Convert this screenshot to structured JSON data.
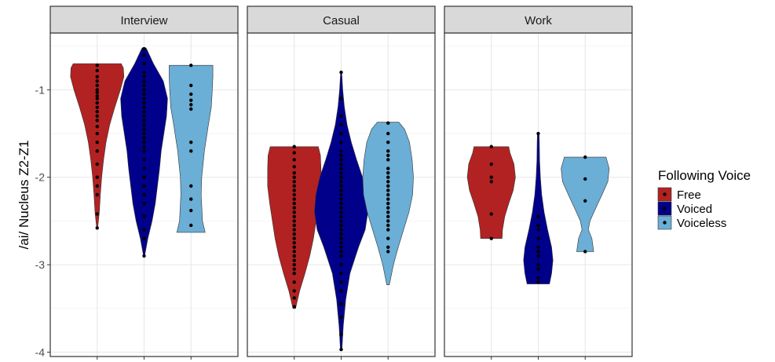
{
  "chart_data": {
    "type": "violin",
    "ylabel": "/ai/ Nucleus Z2-Z1",
    "ylim": [
      -4.05,
      -0.35
    ],
    "yticks": [
      -4,
      -3,
      -2,
      -1
    ],
    "ytick_labels": [
      "-4",
      "-3",
      "-2",
      "-1"
    ],
    "categories": [
      "Free",
      "Voiced",
      "Voiceless"
    ],
    "grid": true,
    "legend": {
      "title": "Following Voice",
      "position": "right",
      "entries": [
        {
          "label": "Free",
          "color": "#b22222"
        },
        {
          "label": "Voiced",
          "color": "#00008b"
        },
        {
          "label": "Voiceless",
          "color": "#6baed6"
        }
      ]
    },
    "facets": [
      {
        "title": "Interview",
        "violins": [
          {
            "group": "Free",
            "min": -2.58,
            "max": -0.7,
            "density": [
              [
                -2.58,
                0.02
              ],
              [
                -2.4,
                0.08
              ],
              [
                -2.2,
                0.12
              ],
              [
                -2.0,
                0.17
              ],
              [
                -1.8,
                0.24
              ],
              [
                -1.6,
                0.33
              ],
              [
                -1.4,
                0.47
              ],
              [
                -1.2,
                0.66
              ],
              [
                -1.0,
                0.87
              ],
              [
                -0.85,
                1.0
              ],
              [
                -0.75,
                0.98
              ],
              [
                -0.7,
                0.9
              ]
            ],
            "points": [
              -0.72,
              -0.78,
              -0.85,
              -0.9,
              -0.95,
              -1.0,
              -1.03,
              -1.07,
              -1.1,
              -1.15,
              -1.2,
              -1.25,
              -1.3,
              -1.35,
              -1.42,
              -1.5,
              -1.6,
              -1.7,
              -1.85,
              -2.0,
              -2.1,
              -2.2,
              -2.42,
              -2.58
            ]
          },
          {
            "group": "Voiced",
            "min": -2.9,
            "max": -0.52,
            "density": [
              [
                -2.9,
                0.02
              ],
              [
                -2.7,
                0.14
              ],
              [
                -2.5,
                0.3
              ],
              [
                -2.3,
                0.42
              ],
              [
                -2.1,
                0.5
              ],
              [
                -1.9,
                0.58
              ],
              [
                -1.7,
                0.64
              ],
              [
                -1.5,
                0.74
              ],
              [
                -1.3,
                0.84
              ],
              [
                -1.1,
                0.88
              ],
              [
                -0.9,
                0.72
              ],
              [
                -0.7,
                0.35
              ],
              [
                -0.55,
                0.12
              ],
              [
                -0.52,
                0.07
              ]
            ],
            "points": [
              -0.53,
              -0.6,
              -0.7,
              -0.8,
              -0.85,
              -0.9,
              -0.95,
              -1.0,
              -1.05,
              -1.1,
              -1.15,
              -1.2,
              -1.25,
              -1.3,
              -1.35,
              -1.4,
              -1.45,
              -1.5,
              -1.55,
              -1.6,
              -1.65,
              -1.7,
              -1.8,
              -1.9,
              -2.0,
              -2.1,
              -2.2,
              -2.3,
              -2.45,
              -2.6,
              -2.7,
              -2.9
            ]
          },
          {
            "group": "Voiceless",
            "min": -2.63,
            "max": -0.72,
            "density": [
              [
                -2.63,
                0.53
              ],
              [
                -2.5,
                0.43
              ],
              [
                -2.2,
                0.38
              ],
              [
                -2.0,
                0.4
              ],
              [
                -1.7,
                0.5
              ],
              [
                -1.4,
                0.65
              ],
              [
                -1.2,
                0.76
              ],
              [
                -1.0,
                0.8
              ],
              [
                -0.85,
                0.82
              ],
              [
                -0.72,
                0.82
              ]
            ],
            "points": [
              -0.72,
              -0.95,
              -1.05,
              -1.12,
              -1.17,
              -1.22,
              -1.6,
              -1.7,
              -2.1,
              -2.25,
              -2.38,
              -2.55
            ]
          }
        ]
      },
      {
        "title": "Casual",
        "violins": [
          {
            "group": "Free",
            "min": -3.5,
            "max": -1.65,
            "density": [
              [
                -3.5,
                0.05
              ],
              [
                -3.3,
                0.2
              ],
              [
                -3.1,
                0.4
              ],
              [
                -2.9,
                0.58
              ],
              [
                -2.7,
                0.72
              ],
              [
                -2.5,
                0.82
              ],
              [
                -2.3,
                0.92
              ],
              [
                -2.1,
                1.0
              ],
              [
                -1.9,
                1.0
              ],
              [
                -1.75,
                0.98
              ],
              [
                -1.65,
                0.9
              ]
            ],
            "points": [
              -1.65,
              -1.72,
              -1.8,
              -1.88,
              -1.95,
              -2.0,
              -2.05,
              -2.1,
              -2.15,
              -2.2,
              -2.25,
              -2.3,
              -2.35,
              -2.4,
              -2.45,
              -2.5,
              -2.55,
              -2.6,
              -2.65,
              -2.7,
              -2.75,
              -2.8,
              -2.85,
              -2.9,
              -2.95,
              -3.0,
              -3.05,
              -3.1,
              -3.2,
              -3.3,
              -3.38,
              -3.48
            ]
          },
          {
            "group": "Voiced",
            "min": -3.97,
            "max": -0.8,
            "density": [
              [
                -3.97,
                0.03
              ],
              [
                -3.7,
                0.08
              ],
              [
                -3.4,
                0.17
              ],
              [
                -3.1,
                0.33
              ],
              [
                -2.8,
                0.65
              ],
              [
                -2.6,
                0.9
              ],
              [
                -2.4,
                1.0
              ],
              [
                -2.2,
                0.95
              ],
              [
                -2.0,
                0.8
              ],
              [
                -1.8,
                0.58
              ],
              [
                -1.6,
                0.38
              ],
              [
                -1.4,
                0.22
              ],
              [
                -1.2,
                0.12
              ],
              [
                -1.0,
                0.06
              ],
              [
                -0.8,
                0.02
              ]
            ],
            "points": [
              -0.8,
              -1.1,
              -1.3,
              -1.4,
              -1.5,
              -1.6,
              -1.7,
              -1.75,
              -1.8,
              -1.85,
              -1.9,
              -1.95,
              -2.0,
              -2.05,
              -2.1,
              -2.15,
              -2.2,
              -2.25,
              -2.3,
              -2.35,
              -2.4,
              -2.45,
              -2.5,
              -2.55,
              -2.6,
              -2.65,
              -2.7,
              -2.75,
              -2.8,
              -2.85,
              -2.9,
              -3.0,
              -3.1,
              -3.2,
              -3.3,
              -3.45,
              -3.6,
              -3.8,
              -3.97
            ]
          },
          {
            "group": "Voiceless",
            "min": -3.23,
            "max": -1.37,
            "density": [
              [
                -3.23,
                0.05
              ],
              [
                -3.0,
                0.2
              ],
              [
                -2.8,
                0.38
              ],
              [
                -2.6,
                0.58
              ],
              [
                -2.4,
                0.78
              ],
              [
                -2.2,
                0.92
              ],
              [
                -2.0,
                0.95
              ],
              [
                -1.8,
                0.9
              ],
              [
                -1.6,
                0.8
              ],
              [
                -1.45,
                0.62
              ],
              [
                -1.37,
                0.4
              ]
            ],
            "points": [
              -1.38,
              -1.5,
              -1.6,
              -1.7,
              -1.75,
              -1.8,
              -1.9,
              -1.95,
              -2.0,
              -2.05,
              -2.1,
              -2.15,
              -2.2,
              -2.25,
              -2.3,
              -2.35,
              -2.4,
              -2.45,
              -2.5,
              -2.55,
              -2.6,
              -2.7,
              -2.8,
              -2.85
            ]
          }
        ]
      },
      {
        "title": "Work",
        "violins": [
          {
            "group": "Free",
            "min": -2.7,
            "max": -1.65,
            "density": [
              [
                -2.7,
                0.4
              ],
              [
                -2.6,
                0.42
              ],
              [
                -2.45,
                0.5
              ],
              [
                -2.3,
                0.65
              ],
              [
                -2.15,
                0.82
              ],
              [
                -2.0,
                0.9
              ],
              [
                -1.85,
                0.85
              ],
              [
                -1.72,
                0.7
              ],
              [
                -1.65,
                0.65
              ]
            ],
            "points": [
              -1.65,
              -1.85,
              -2.0,
              -2.05,
              -2.42,
              -2.7
            ]
          },
          {
            "group": "Voiced",
            "min": -3.22,
            "max": -1.49,
            "density": [
              [
                -3.22,
                0.42
              ],
              [
                -3.1,
                0.5
              ],
              [
                -2.95,
                0.55
              ],
              [
                -2.8,
                0.5
              ],
              [
                -2.6,
                0.35
              ],
              [
                -2.4,
                0.22
              ],
              [
                -2.2,
                0.13
              ],
              [
                -2.0,
                0.08
              ],
              [
                -1.8,
                0.05
              ],
              [
                -1.6,
                0.04
              ],
              [
                -1.49,
                0.03
              ]
            ],
            "points": [
              -1.5,
              -2.45,
              -2.55,
              -2.6,
              -2.7,
              -2.8,
              -2.85,
              -2.9,
              -3.0,
              -3.05,
              -3.15,
              -3.2
            ]
          },
          {
            "group": "Voiceless",
            "min": -2.85,
            "max": -1.77,
            "density": [
              [
                -2.85,
                0.32
              ],
              [
                -2.7,
                0.25
              ],
              [
                -2.6,
                0.12
              ],
              [
                -2.5,
                0.18
              ],
              [
                -2.35,
                0.4
              ],
              [
                -2.2,
                0.63
              ],
              [
                -2.05,
                0.85
              ],
              [
                -1.9,
                0.9
              ],
              [
                -1.77,
                0.78
              ]
            ],
            "points": [
              -1.77,
              -2.02,
              -2.27,
              -2.85
            ]
          }
        ]
      }
    ]
  }
}
